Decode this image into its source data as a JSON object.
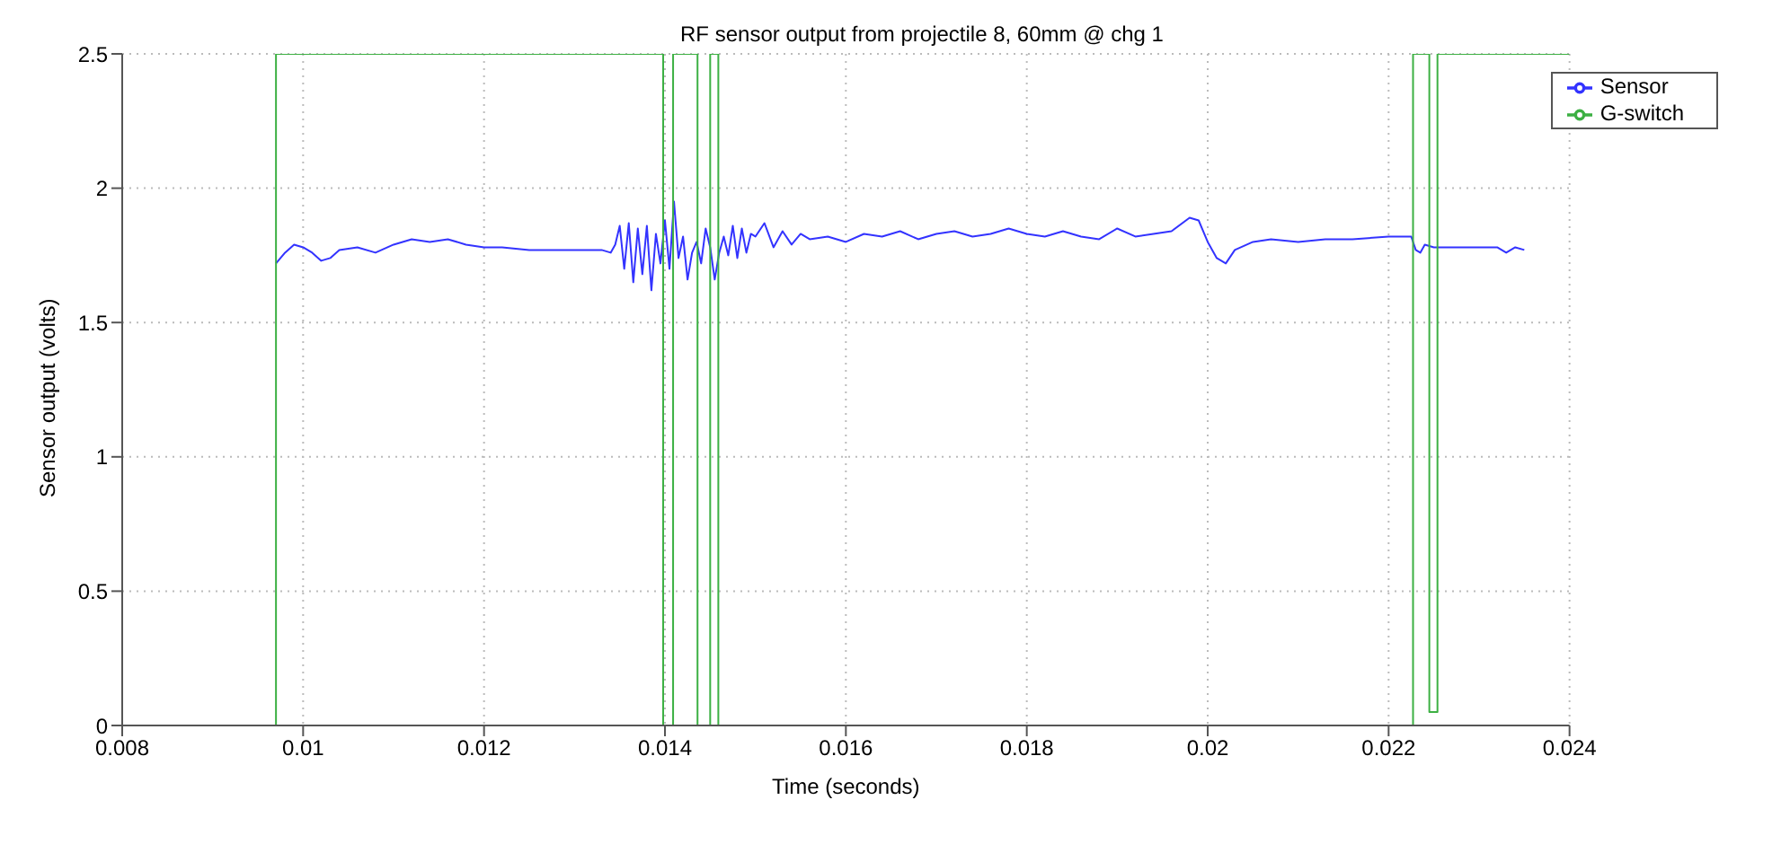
{
  "chart_data": {
    "type": "line",
    "title": "RF sensor output from projectile 8, 60mm @ chg 1",
    "xlabel": "Time (seconds)",
    "ylabel": "Sensor output (volts)",
    "xlim": [
      0.008,
      0.024
    ],
    "xticks": [
      0.008,
      0.01,
      0.012,
      0.014,
      0.016,
      0.018,
      0.02,
      0.022,
      0.024
    ],
    "ylim": [
      0,
      2.5
    ],
    "yticks": [
      0,
      0.5,
      1,
      1.5,
      2,
      2.5
    ],
    "grid": true,
    "legend": "top right",
    "marker": "none",
    "line_style": "solid",
    "series": [
      {
        "name": "Sensor",
        "color": "#3333ff",
        "x": [
          0.0097,
          0.0098,
          0.0099,
          0.01,
          0.0101,
          0.0102,
          0.0103,
          0.0104,
          0.0106,
          0.0108,
          0.011,
          0.0112,
          0.0114,
          0.0116,
          0.0118,
          0.012,
          0.0122,
          0.0125,
          0.013,
          0.0133,
          0.0134,
          0.01345,
          0.0135,
          0.01355,
          0.0136,
          0.01365,
          0.0137,
          0.01375,
          0.0138,
          0.01385,
          0.0139,
          0.01395,
          0.014,
          0.01405,
          0.0141,
          0.01415,
          0.0142,
          0.01425,
          0.0143,
          0.01435,
          0.0144,
          0.01445,
          0.0145,
          0.01455,
          0.0146,
          0.01465,
          0.0147,
          0.01475,
          0.0148,
          0.01485,
          0.0149,
          0.01495,
          0.015,
          0.0151,
          0.0152,
          0.0153,
          0.0154,
          0.0155,
          0.0156,
          0.0158,
          0.016,
          0.0162,
          0.0164,
          0.0166,
          0.0168,
          0.017,
          0.0172,
          0.0174,
          0.0176,
          0.0178,
          0.018,
          0.0182,
          0.0184,
          0.0186,
          0.0188,
          0.019,
          0.0192,
          0.0194,
          0.0196,
          0.0198,
          0.0199,
          0.02,
          0.0201,
          0.0202,
          0.0203,
          0.0205,
          0.0207,
          0.021,
          0.0213,
          0.0216,
          0.022,
          0.0222,
          0.02225,
          0.0223,
          0.02235,
          0.0224,
          0.0225,
          0.0227,
          0.023,
          0.0232,
          0.0233,
          0.0234,
          0.0235
        ],
        "values": [
          1.72,
          1.76,
          1.79,
          1.78,
          1.76,
          1.73,
          1.74,
          1.77,
          1.78,
          1.76,
          1.79,
          1.81,
          1.8,
          1.81,
          1.79,
          1.78,
          1.78,
          1.77,
          1.77,
          1.77,
          1.76,
          1.79,
          1.86,
          1.7,
          1.87,
          1.65,
          1.85,
          1.68,
          1.86,
          1.62,
          1.83,
          1.72,
          1.88,
          1.7,
          1.95,
          1.74,
          1.82,
          1.66,
          1.76,
          1.8,
          1.72,
          1.85,
          1.78,
          1.66,
          1.76,
          1.82,
          1.75,
          1.86,
          1.74,
          1.85,
          1.76,
          1.83,
          1.82,
          1.87,
          1.78,
          1.84,
          1.79,
          1.83,
          1.81,
          1.82,
          1.8,
          1.83,
          1.82,
          1.84,
          1.81,
          1.83,
          1.84,
          1.82,
          1.83,
          1.85,
          1.83,
          1.82,
          1.84,
          1.82,
          1.81,
          1.85,
          1.82,
          1.83,
          1.84,
          1.89,
          1.88,
          1.8,
          1.74,
          1.72,
          1.77,
          1.8,
          1.81,
          1.8,
          1.81,
          1.81,
          1.82,
          1.82,
          1.82,
          1.77,
          1.76,
          1.79,
          1.78,
          1.78,
          1.78,
          1.78,
          1.76,
          1.78,
          1.77
        ]
      },
      {
        "name": "G-switch",
        "color": "#3cb043",
        "x": [
          0.008,
          0.0097,
          0.0097,
          0.01398,
          0.01398,
          0.01409,
          0.01409,
          0.01409,
          0.01436,
          0.01436,
          0.0145,
          0.0145,
          0.0145,
          0.01459,
          0.01459,
          0.02227,
          0.02227,
          0.02227,
          0.02245,
          0.02245,
          0.02245,
          0.02254,
          0.02254,
          0.024
        ],
        "values": [
          0,
          0,
          2.5,
          2.5,
          0,
          0,
          1.25,
          2.5,
          2.5,
          0,
          0,
          1.25,
          2.5,
          2.5,
          0,
          0,
          1.25,
          2.5,
          2.5,
          1.25,
          0.05,
          0.05,
          2.5,
          2.5
        ]
      }
    ]
  }
}
